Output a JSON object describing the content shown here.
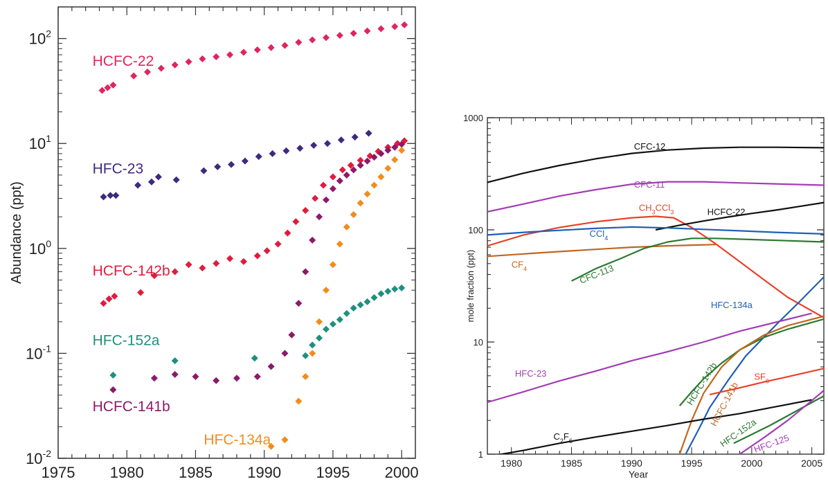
{
  "chart_data": [
    {
      "type": "scatter",
      "title": "",
      "xlabel": "",
      "ylabel": "Abundance (ppt)",
      "xlim": [
        1975,
        2001
      ],
      "ylim": [
        0.01,
        200
      ],
      "yscale": "log",
      "grid": false,
      "x_ticks": [
        1975,
        1980,
        1985,
        1990,
        1995,
        2000
      ],
      "y_ticks": [
        {
          "base": "10",
          "exp": "2",
          "value": 100
        },
        {
          "base": "10",
          "exp": "1",
          "value": 10
        },
        {
          "base": "10",
          "exp": "0",
          "value": 1
        },
        {
          "base": "10",
          "exp": "-1",
          "value": 0.1
        },
        {
          "base": "10",
          "exp": "-2",
          "value": 0.01
        }
      ],
      "series": [
        {
          "name": "HCFC-22",
          "color": "#e0245e",
          "x": [
            1978.2,
            1978.6,
            1979.0,
            1980.5,
            1981.5,
            1982.5,
            1983.5,
            1984.5,
            1985.5,
            1986.5,
            1987.5,
            1988.5,
            1989.5,
            1990.5,
            1991.5,
            1992.5,
            1993.5,
            1994.5,
            1995.5,
            1996.5,
            1997.5,
            1998.5,
            1999.5,
            2000.2
          ],
          "y": [
            32,
            34,
            36,
            44,
            48,
            52,
            56,
            60,
            64,
            67,
            70,
            74,
            78,
            82,
            86,
            92,
            97,
            102,
            107,
            112,
            118,
            124,
            130,
            135
          ]
        },
        {
          "name": "HFC-23",
          "color": "#3e2a7e",
          "x": [
            1978.3,
            1978.8,
            1979.2,
            1980.8,
            1981.8,
            1982.3,
            1983.6,
            1985.6,
            1986.6,
            1987.6,
            1988.6,
            1989.6,
            1990.6,
            1991.6,
            1992.6,
            1993.6,
            1994.6,
            1995.6,
            1996.6,
            1997.6
          ],
          "y": [
            3.1,
            3.2,
            3.2,
            4.0,
            4.3,
            4.8,
            4.5,
            5.5,
            6.0,
            6.3,
            6.8,
            7.5,
            8.0,
            8.5,
            9.0,
            9.6,
            10.0,
            10.8,
            11.5,
            12.5
          ]
        },
        {
          "name": "HCFC-142b",
          "color": "#e01c3c",
          "x": [
            1978.3,
            1978.7,
            1979.1,
            1981.0,
            1982.0,
            1983.5,
            1984.5,
            1985.5,
            1986.5,
            1987.5,
            1988.5,
            1989.5,
            1990.2,
            1991.0,
            1991.7,
            1992.3,
            1993.0,
            1993.7,
            1994.3,
            1995.0,
            1995.7,
            1996.3,
            1997.0,
            1997.7,
            1998.3,
            1999.0,
            1999.7,
            2000.2
          ],
          "y": [
            0.3,
            0.33,
            0.35,
            0.38,
            0.55,
            0.6,
            0.7,
            0.65,
            0.72,
            0.8,
            0.75,
            0.85,
            0.95,
            1.1,
            1.4,
            1.8,
            2.3,
            3.0,
            4.0,
            4.8,
            5.6,
            6.2,
            6.9,
            7.6,
            8.4,
            9.2,
            10.0,
            10.6
          ]
        },
        {
          "name": "HFC-152a",
          "color": "#1e9080",
          "x": [
            1979.0,
            1983.5,
            1989.3,
            1993.0,
            1993.5,
            1994.0,
            1994.5,
            1995.0,
            1995.5,
            1996.0,
            1996.5,
            1997.0,
            1997.5,
            1998.0,
            1998.5,
            1999.0,
            1999.5,
            2000.0
          ],
          "y": [
            0.062,
            0.085,
            0.09,
            0.095,
            0.12,
            0.14,
            0.17,
            0.19,
            0.21,
            0.24,
            0.27,
            0.29,
            0.31,
            0.34,
            0.37,
            0.39,
            0.41,
            0.42
          ]
        },
        {
          "name": "HCFC-141b",
          "color": "#8c1a6a",
          "x": [
            1979.0,
            1982.0,
            1983.5,
            1985.0,
            1986.5,
            1988.0,
            1989.5,
            1990.5,
            1991.5,
            1992.0,
            1992.5,
            1993.0,
            1993.5,
            1994.0,
            1994.5,
            1995.0,
            1995.5,
            1996.0,
            1996.5,
            1997.0,
            1997.5,
            1998.0,
            1998.5,
            1999.0,
            1999.5,
            2000.0
          ],
          "y": [
            0.045,
            0.058,
            0.063,
            0.06,
            0.055,
            0.058,
            0.06,
            0.075,
            0.1,
            0.15,
            0.3,
            0.6,
            1.2,
            2.0,
            2.9,
            3.7,
            4.4,
            5.0,
            5.6,
            6.2,
            6.8,
            7.4,
            8.0,
            8.6,
            9.2,
            9.8
          ]
        },
        {
          "name": "HFC-134a",
          "color": "#f28c1c",
          "x": [
            1990.5,
            1991.5,
            1992.5,
            1993.0,
            1993.5,
            1994.0,
            1994.5,
            1995.0,
            1995.5,
            1996.0,
            1996.5,
            1997.0,
            1997.5,
            1998.0,
            1998.5,
            1999.0,
            1999.5,
            2000.0
          ],
          "y": [
            0.013,
            0.015,
            0.035,
            0.06,
            0.1,
            0.2,
            0.4,
            0.7,
            1.1,
            1.6,
            2.1,
            2.7,
            3.3,
            4.0,
            4.8,
            5.8,
            7.0,
            8.6
          ]
        }
      ]
    },
    {
      "type": "line",
      "title": "",
      "xlabel": "Year",
      "ylabel": "mole fraction (ppt)",
      "xlim": [
        1978,
        2006
      ],
      "ylim": [
        1,
        1000
      ],
      "yscale": "log",
      "grid": false,
      "x_ticks": [
        1980,
        1985,
        1990,
        1995,
        2000,
        2005
      ],
      "y_ticks": [
        {
          "label": "1000",
          "value": 1000
        },
        {
          "label": "100",
          "value": 100
        },
        {
          "label": "10",
          "value": 10
        },
        {
          "label": "1",
          "value": 1
        }
      ],
      "series": [
        {
          "name": "CFC-12",
          "color": "#111111",
          "x": [
            1978,
            1981,
            1984,
            1987,
            1990,
            1993,
            1996,
            1999,
            2002,
            2006
          ],
          "y": [
            265,
            320,
            375,
            430,
            480,
            515,
            535,
            545,
            545,
            540
          ]
        },
        {
          "name": "CFC-11",
          "color": "#a23db4",
          "x": [
            1978,
            1981,
            1984,
            1987,
            1990,
            1993,
            1996,
            1999,
            2002,
            2006
          ],
          "y": [
            145,
            170,
            200,
            228,
            255,
            268,
            268,
            262,
            257,
            250
          ]
        },
        {
          "name": "CH₃CCl₃",
          "color": "#e8402a",
          "x": [
            1978,
            1981,
            1984,
            1987,
            1990,
            1992,
            1993.5,
            1995,
            1997,
            1999,
            2001,
            2003,
            2006
          ],
          "y": [
            72,
            90,
            105,
            118,
            128,
            132,
            128,
            105,
            75,
            52,
            36,
            25,
            16.5
          ]
        },
        {
          "name": "HCFC-22",
          "color": "#111111",
          "x": [
            1992,
            1994,
            1996,
            1998,
            2000,
            2002,
            2004,
            2006
          ],
          "y": [
            100,
            110,
            120,
            130,
            140,
            150,
            162,
            175
          ]
        },
        {
          "name": "CCl₄",
          "color": "#1f5fb4",
          "x": [
            1978,
            1981,
            1984,
            1987,
            1990,
            1993,
            1996,
            1999,
            2002,
            2006
          ],
          "y": [
            90,
            95,
            99,
            103,
            106,
            104,
            101,
            98,
            95,
            92
          ]
        },
        {
          "name": "CF₄",
          "color": "#c0661e",
          "x": [
            1978,
            1981,
            1984,
            1987,
            1990,
            1993,
            1997
          ],
          "y": [
            58,
            61,
            64,
            67,
            70,
            72,
            74
          ]
        },
        {
          "name": "CFC-113",
          "color": "#2a7a30",
          "x": [
            1985,
            1987,
            1989,
            1991,
            1993,
            1995,
            1997,
            2000,
            2003,
            2006
          ],
          "y": [
            35,
            45,
            55,
            68,
            78,
            84,
            84,
            82,
            80,
            78
          ]
        },
        {
          "name": "HFC-134a",
          "color": "#1f5fb4",
          "x": [
            1994.5,
            1995.5,
            1996.5,
            1998,
            1999.5,
            2001,
            2002.5,
            2004,
            2006
          ],
          "y": [
            1,
            1.6,
            2.6,
            4.5,
            7.5,
            11,
            16,
            23,
            38
          ]
        },
        {
          "name": "HFC-23",
          "color": "#a23db4",
          "x": [
            1978,
            1981,
            1984,
            1987,
            1990,
            1993,
            1996,
            1999,
            2002,
            2005
          ],
          "y": [
            2.9,
            3.6,
            4.5,
            5.5,
            6.8,
            8.2,
            10,
            12.5,
            15,
            18
          ]
        },
        {
          "name": "HCFC-142b",
          "color": "#2a7a30",
          "x": [
            1994,
            1995,
            1996,
            1997.5,
            1999,
            2001,
            2003,
            2006
          ],
          "y": [
            2.7,
            3.6,
            4.7,
            6.5,
            8.5,
            11,
            13,
            16
          ]
        },
        {
          "name": "HCFC-141b",
          "color": "#c0661e",
          "x": [
            1994,
            1995,
            1996,
            1997.5,
            1999,
            2001,
            2003,
            2006
          ],
          "y": [
            1,
            2,
            3.5,
            6,
            8.5,
            11.5,
            14,
            17
          ]
        },
        {
          "name": "SF₆",
          "color": "#e8402a",
          "x": [
            1996.5,
            1999,
            2001,
            2003,
            2006
          ],
          "y": [
            3.4,
            3.9,
            4.4,
            4.9,
            5.8
          ]
        },
        {
          "name": "C₂F₆",
          "color": "#111111",
          "x": [
            1978,
            1981,
            1984,
            1987,
            1990,
            1993,
            1996,
            1999,
            2002,
            2005
          ],
          "y": [
            0.95,
            1.08,
            1.25,
            1.42,
            1.6,
            1.8,
            2.05,
            2.3,
            2.65,
            3.05
          ]
        },
        {
          "name": "HFC-152a",
          "color": "#2a7a30",
          "x": [
            1998.5,
            2000,
            2001.5,
            2003,
            2004.5,
            2006
          ],
          "y": [
            1.25,
            1.5,
            1.8,
            2.2,
            2.7,
            3.3
          ]
        },
        {
          "name": "HFC-125",
          "color": "#a23db4",
          "x": [
            1999,
            2001,
            2003,
            2005,
            2006
          ],
          "y": [
            1,
            1.4,
            2,
            3,
            3.7
          ]
        }
      ]
    }
  ]
}
